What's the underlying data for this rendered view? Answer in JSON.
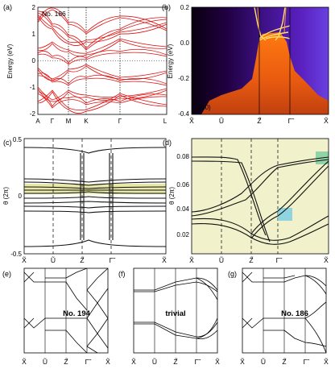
{
  "panels": {
    "a": {
      "label": "(a)",
      "tag": "No. 186",
      "ylabel": "Energy (eV)",
      "yticks": [
        "2",
        "1",
        "0",
        "-1",
        "-2"
      ],
      "xticks": [
        "A",
        "Γ",
        "M",
        "K",
        "Γ",
        "L"
      ],
      "yrange": [
        -2,
        2
      ]
    },
    "b": {
      "label": "(b)",
      "tag": "(010)",
      "ylabel": "Energy (eV)",
      "yticks": [
        "0.2",
        "0.0",
        "-0.2",
        "-0.4"
      ],
      "xticks": [
        "X̃",
        "Ũ",
        "Z̃",
        "Γ̃",
        "X̃"
      ],
      "yrange": [
        -0.4,
        0.2
      ]
    },
    "c": {
      "label": "(c)",
      "ylabel": "θ (2π)",
      "yticks": [
        "0.5",
        "0",
        "-0.5"
      ],
      "xticks": [
        "X̃",
        "Ũ",
        "Z̃",
        "Γ̃",
        "X̃"
      ],
      "yrange": [
        -0.5,
        0.5
      ]
    },
    "d": {
      "label": "(d)",
      "ylabel": "θ (2π)",
      "yticks": [
        "0.08",
        "0.06",
        "0.04",
        "0.02"
      ],
      "xticks": [
        "X̃",
        "Ũ",
        "Z̃",
        "Γ̃",
        "X̃"
      ],
      "yrange": [
        0.01,
        0.09
      ]
    },
    "e": {
      "label": "(e)",
      "tag": "No. 194",
      "xticks": [
        "X̃",
        "Ũ",
        "Z̃",
        "Γ̃",
        "X̃"
      ]
    },
    "f": {
      "label": "(f)",
      "tag": "trivial",
      "xticks": [
        "X̃",
        "Ũ",
        "Z̃",
        "Γ̃",
        "X̃"
      ]
    },
    "g": {
      "label": "(g)",
      "tag": "No. 186",
      "xticks": [
        "X̃",
        "Ũ",
        "Z̃",
        "Γ̃",
        "X̃"
      ]
    }
  },
  "colors": {
    "bands": "#e01010",
    "wilson": "#111111",
    "highlight": "#e8e8a8",
    "cyan": "#7fd0e0",
    "green": "#7fcf9f"
  }
}
